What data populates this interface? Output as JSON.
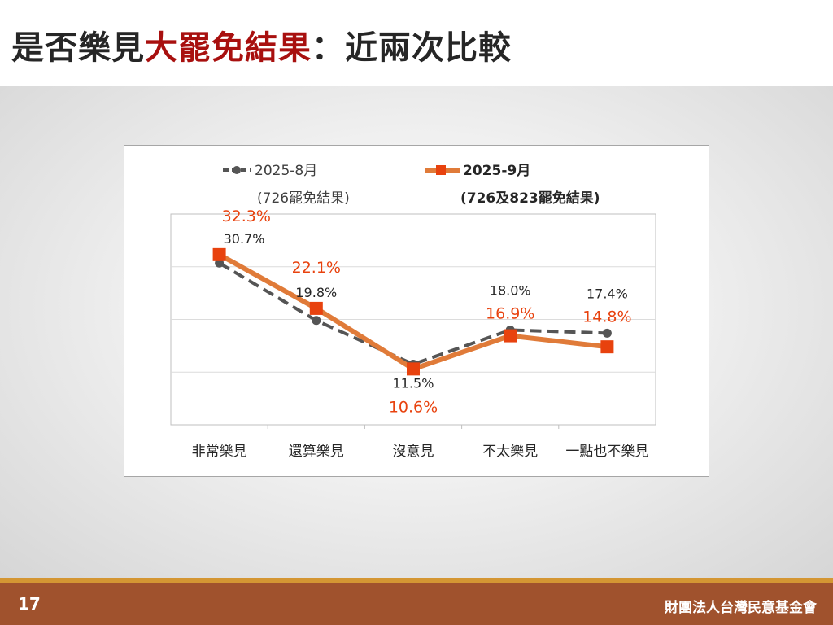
{
  "slide": {
    "title_part1": "是否樂見",
    "title_highlight": "大罷免結果",
    "title_part2": "：近兩次比較",
    "page_number": "17",
    "organization": "財團法人台灣民意基金會"
  },
  "colors": {
    "aug": "#555555",
    "sep": "#e07b39",
    "sep_marker": "#e8420e",
    "sep_label": "#e8420e",
    "title_highlight": "#a8100f",
    "footer": "#a0522d"
  },
  "chart_data": {
    "type": "line",
    "categories": [
      "非常樂見",
      "還算樂見",
      "沒意見",
      "不太樂見",
      "一點也不樂見"
    ],
    "series": [
      {
        "name": "2025-8月",
        "subtitle": "(726罷免結果)",
        "values": [
          30.7,
          19.8,
          11.5,
          18.0,
          17.4
        ],
        "labels": [
          "30.7%",
          "19.8%",
          "11.5%",
          "18.0%",
          "17.4%"
        ]
      },
      {
        "name": "2025-9月",
        "subtitle": "(726及823罷免結果)",
        "values": [
          32.3,
          22.1,
          10.6,
          16.9,
          14.8
        ],
        "labels": [
          "32.3%",
          "22.1%",
          "10.6%",
          "16.9%",
          "14.8%"
        ]
      }
    ],
    "ylim": [
      0,
      40
    ],
    "grid": true,
    "legend_position": "top"
  }
}
